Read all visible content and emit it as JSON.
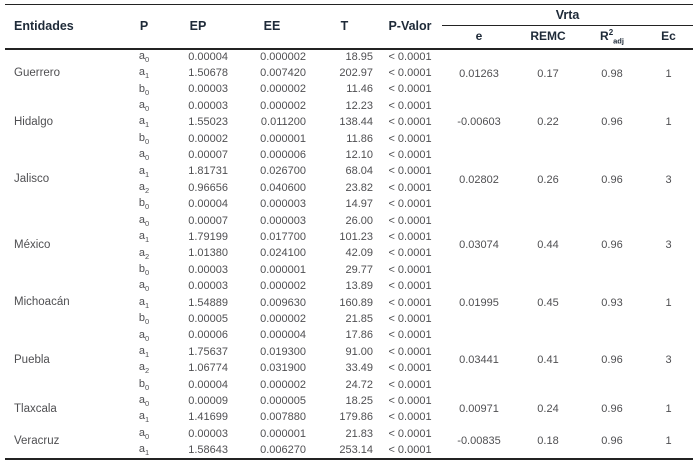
{
  "colors": {
    "rule": "#232323",
    "header_text": "#1e2a38",
    "body_text": "#4f4f52",
    "background": "#ffffff"
  },
  "table": {
    "headers": {
      "entidades": "Entidades",
      "p": "P",
      "ep": "EP",
      "ee": "EE",
      "t": "T",
      "pvalor": "P-Valor",
      "vrta": "Vrta",
      "e": "e",
      "remc": "REMC",
      "r2": {
        "base": "R",
        "sup": "2",
        "sub": "adj"
      },
      "ec": "Ec"
    },
    "groups": [
      {
        "entidad": "Guerrero",
        "e": "0.01263",
        "remc": "0.17",
        "r2": "0.98",
        "ec": "1",
        "rows": [
          {
            "param": {
              "base": "a",
              "sub": "0"
            },
            "ep": "0.00004",
            "ee": "0.000002",
            "t": "18.95",
            "pvalor": "< 0.0001"
          },
          {
            "param": {
              "base": "a",
              "sub": "1"
            },
            "ep": "1.50678",
            "ee": "0.007420",
            "t": "202.97",
            "pvalor": "< 0.0001"
          },
          {
            "param": {
              "base": "b",
              "sub": "0"
            },
            "ep": "0.00003",
            "ee": "0.000002",
            "t": "11.46",
            "pvalor": "< 0.0001"
          }
        ]
      },
      {
        "entidad": "Hidalgo",
        "e": "-0.00603",
        "remc": "0.22",
        "r2": "0.96",
        "ec": "1",
        "rows": [
          {
            "param": {
              "base": "a",
              "sub": "0"
            },
            "ep": "0.00003",
            "ee": "0.000002",
            "t": "12.23",
            "pvalor": "< 0.0001"
          },
          {
            "param": {
              "base": "a",
              "sub": "1"
            },
            "ep": "1.55023",
            "ee": "0.011200",
            "t": "138.44",
            "pvalor": "< 0.0001"
          },
          {
            "param": {
              "base": "b",
              "sub": "0"
            },
            "ep": "0.00002",
            "ee": "0.000001",
            "t": "11.86",
            "pvalor": "< 0.0001"
          }
        ]
      },
      {
        "entidad": "Jalisco",
        "e": "0.02802",
        "remc": "0.26",
        "r2": "0.96",
        "ec": "3",
        "rows": [
          {
            "param": {
              "base": "a",
              "sub": "0"
            },
            "ep": "0.00007",
            "ee": "0.000006",
            "t": "12.10",
            "pvalor": "< 0.0001"
          },
          {
            "param": {
              "base": "a",
              "sub": "1"
            },
            "ep": "1.81731",
            "ee": "0.026700",
            "t": "68.04",
            "pvalor": "< 0.0001"
          },
          {
            "param": {
              "base": "a",
              "sub": "2"
            },
            "ep": "0.96656",
            "ee": "0.040600",
            "t": "23.82",
            "pvalor": "< 0.0001"
          },
          {
            "param": {
              "base": "b",
              "sub": "0"
            },
            "ep": "0.00004",
            "ee": "0.000003",
            "t": "14.97",
            "pvalor": "< 0.0001"
          }
        ]
      },
      {
        "entidad": "México",
        "e": "0.03074",
        "remc": "0.44",
        "r2": "0.96",
        "ec": "3",
        "rows": [
          {
            "param": {
              "base": "a",
              "sub": "0"
            },
            "ep": "0.00007",
            "ee": "0.000003",
            "t": "26.00",
            "pvalor": "< 0.0001"
          },
          {
            "param": {
              "base": "a",
              "sub": "1"
            },
            "ep": "1.79199",
            "ee": "0.017700",
            "t": "101.23",
            "pvalor": "< 0.0001"
          },
          {
            "param": {
              "base": "a",
              "sub": "2"
            },
            "ep": "1.01380",
            "ee": "0.024100",
            "t": "42.09",
            "pvalor": "< 0.0001"
          },
          {
            "param": {
              "base": "b",
              "sub": "0"
            },
            "ep": "0.00003",
            "ee": "0.000001",
            "t": "29.77",
            "pvalor": "< 0.0001"
          }
        ]
      },
      {
        "entidad": "Michoacán",
        "e": "0.01995",
        "remc": "0.45",
        "r2": "0.93",
        "ec": "1",
        "rows": [
          {
            "param": {
              "base": "a",
              "sub": "0"
            },
            "ep": "0.00003",
            "ee": "0.000002",
            "t": "13.89",
            "pvalor": "< 0.0001"
          },
          {
            "param": {
              "base": "a",
              "sub": "1"
            },
            "ep": "1.54889",
            "ee": "0.009630",
            "t": "160.89",
            "pvalor": "< 0.0001"
          },
          {
            "param": {
              "base": "b",
              "sub": "0"
            },
            "ep": "0.00005",
            "ee": "0.000002",
            "t": "21.85",
            "pvalor": "< 0.0001"
          }
        ]
      },
      {
        "entidad": "Puebla",
        "e": "0.03441",
        "remc": "0.41",
        "r2": "0.96",
        "ec": "3",
        "rows": [
          {
            "param": {
              "base": "a",
              "sub": "0"
            },
            "ep": "0.00006",
            "ee": "0.000004",
            "t": "17.86",
            "pvalor": "< 0.0001"
          },
          {
            "param": {
              "base": "a",
              "sub": "1"
            },
            "ep": "1.75637",
            "ee": "0.019300",
            "t": "91.00",
            "pvalor": "< 0.0001"
          },
          {
            "param": {
              "base": "a",
              "sub": "2"
            },
            "ep": "1.06774",
            "ee": "0.031900",
            "t": "33.49",
            "pvalor": "< 0.0001"
          },
          {
            "param": {
              "base": "b",
              "sub": "0"
            },
            "ep": "0.00004",
            "ee": "0.000002",
            "t": "24.72",
            "pvalor": "< 0.0001"
          }
        ]
      },
      {
        "entidad": "Tlaxcala",
        "e": "0.00971",
        "remc": "0.24",
        "r2": "0.96",
        "ec": "1",
        "rows": [
          {
            "param": {
              "base": "a",
              "sub": "0"
            },
            "ep": "0.00009",
            "ee": "0.000005",
            "t": "18.25",
            "pvalor": "< 0.0001"
          },
          {
            "param": {
              "base": "a",
              "sub": "1"
            },
            "ep": "1.41699",
            "ee": "0.007880",
            "t": "179.86",
            "pvalor": "< 0.0001"
          }
        ]
      },
      {
        "entidad": "Veracruz",
        "e": "-0.00835",
        "remc": "0.18",
        "r2": "0.96",
        "ec": "1",
        "rows": [
          {
            "param": {
              "base": "a",
              "sub": "0"
            },
            "ep": "0.00003",
            "ee": "0.000001",
            "t": "21.83",
            "pvalor": "< 0.0001"
          },
          {
            "param": {
              "base": "a",
              "sub": "1"
            },
            "ep": "1.58643",
            "ee": "0.006270",
            "t": "253.14",
            "pvalor": "< 0.0001"
          }
        ]
      }
    ]
  }
}
